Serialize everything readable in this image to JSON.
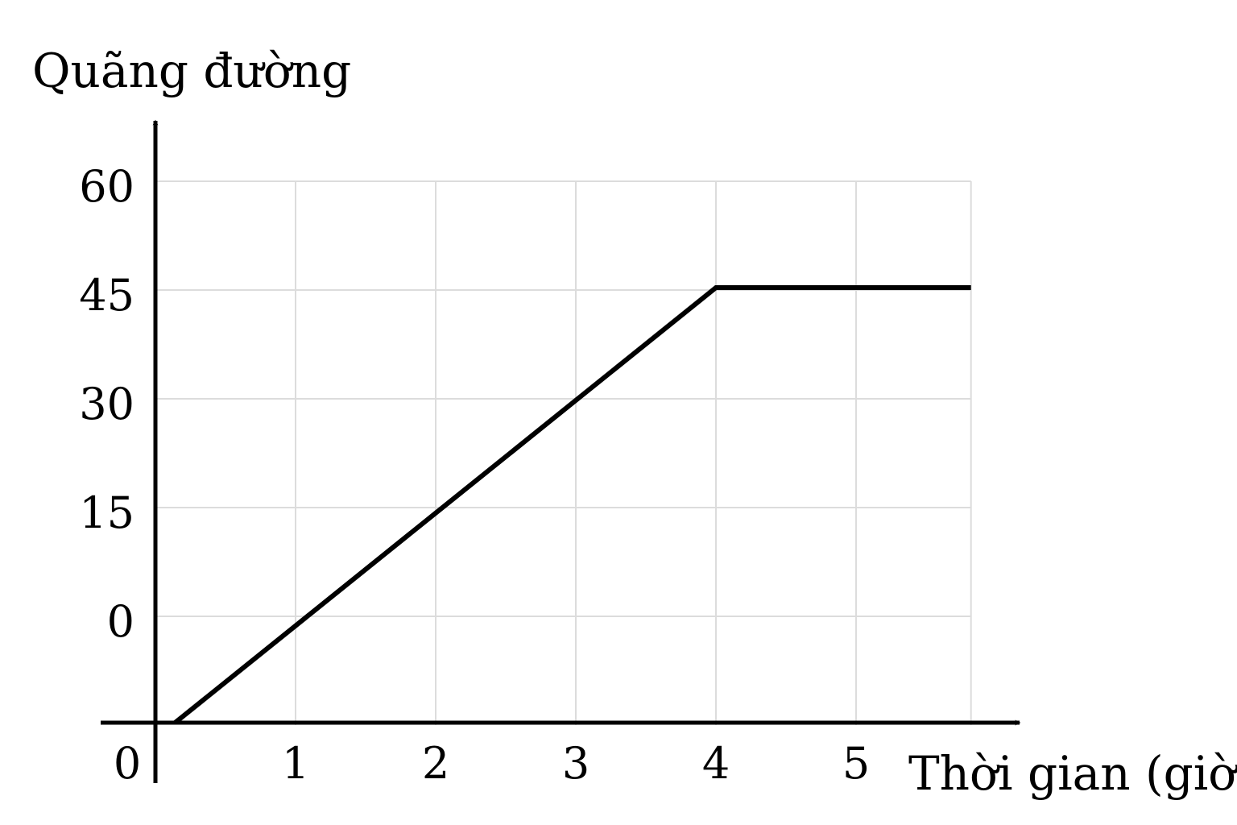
{
  "chart_data": {
    "type": "line",
    "ylabel": "Quãng đường",
    "xlabel": "Thời gian (giờ)",
    "origin_label": "0",
    "x_ticks": [
      1,
      2,
      3,
      4,
      5
    ],
    "x_tick_labels": [
      "1",
      "2",
      "3",
      "4",
      "5"
    ],
    "y_ticks": [
      0,
      15,
      30,
      45,
      60
    ],
    "y_tick_labels": [
      "0",
      "15",
      "30",
      "45",
      "60"
    ],
    "xlim": [
      0,
      5.82
    ],
    "ylim": [
      -15,
      60
    ],
    "grid": true,
    "series": [
      {
        "color": "#000000",
        "x": [
          0.14,
          4,
          5.82
        ],
        "y": [
          -15,
          45,
          45
        ]
      }
    ],
    "colors": {
      "grid": "#dcdcdc",
      "axis": "#000000",
      "line": "#000000"
    }
  }
}
